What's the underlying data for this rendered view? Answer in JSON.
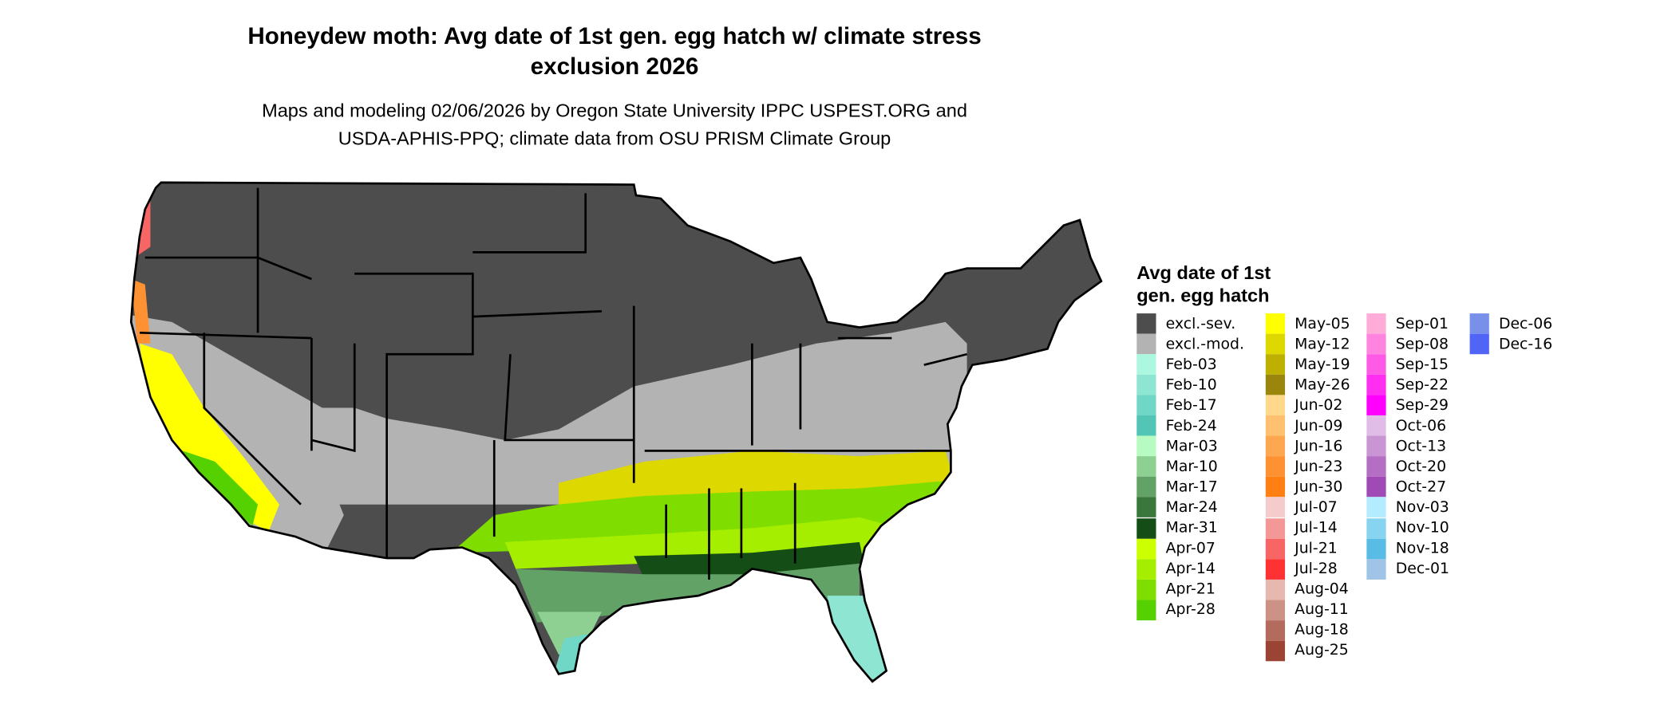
{
  "title": "Honeydew moth: Avg date of 1st gen. egg hatch w/ climate stress exclusion 2026",
  "title_lines": [
    "Honeydew moth: Avg date of 1st gen. egg hatch w/ climate stress",
    "exclusion 2026"
  ],
  "subtitle_lines": [
    "Maps and modeling 02/06/2026 by Oregon State University IPPC USPEST.ORG and",
    "USDA-APHIS-PPQ; climate data from OSU PRISM Climate Group"
  ],
  "legend": {
    "title_lines": [
      "Avg date of 1st",
      "gen. egg hatch"
    ],
    "items": [
      {
        "label": "excl.-sev.",
        "color": "#4d4d4d"
      },
      {
        "label": "excl.-mod.",
        "color": "#b3b3b3"
      },
      {
        "label": "Feb-03",
        "color": "#abf7e0"
      },
      {
        "label": "Feb-10",
        "color": "#8ee6d2"
      },
      {
        "label": "Feb-17",
        "color": "#70d6c6"
      },
      {
        "label": "Feb-24",
        "color": "#52c5b6"
      },
      {
        "label": "Mar-03",
        "color": "#b7fbc2"
      },
      {
        "label": "Mar-10",
        "color": "#8ecf92"
      },
      {
        "label": "Mar-17",
        "color": "#62a266"
      },
      {
        "label": "Mar-24",
        "color": "#3a773c"
      },
      {
        "label": "Mar-31",
        "color": "#154d17"
      },
      {
        "label": "Apr-07",
        "color": "#ccff00"
      },
      {
        "label": "Apr-14",
        "color": "#a6ee00"
      },
      {
        "label": "Apr-21",
        "color": "#7fdd00"
      },
      {
        "label": "Apr-28",
        "color": "#55d000"
      },
      {
        "label": "May-05",
        "color": "#ffff00"
      },
      {
        "label": "May-12",
        "color": "#ddd800"
      },
      {
        "label": "May-19",
        "color": "#bdb000"
      },
      {
        "label": "May-26",
        "color": "#9a860c"
      },
      {
        "label": "Jun-02",
        "color": "#ffd88c"
      },
      {
        "label": "Jun-09",
        "color": "#ffc070"
      },
      {
        "label": "Jun-16",
        "color": "#fda850"
      },
      {
        "label": "Jun-23",
        "color": "#fe9132"
      },
      {
        "label": "Jun-30",
        "color": "#ff7f13"
      },
      {
        "label": "Jul-07",
        "color": "#f4cccc"
      },
      {
        "label": "Jul-14",
        "color": "#f39896"
      },
      {
        "label": "Jul-21",
        "color": "#f76565"
      },
      {
        "label": "Jul-28",
        "color": "#fe3232"
      },
      {
        "label": "Aug-04",
        "color": "#e6b8af"
      },
      {
        "label": "Aug-11",
        "color": "#cc9285"
      },
      {
        "label": "Aug-18",
        "color": "#b36b5e"
      },
      {
        "label": "Aug-25",
        "color": "#9c4434"
      },
      {
        "label": "Sep-01",
        "color": "#ffacd8"
      },
      {
        "label": "Sep-08",
        "color": "#ff84e0"
      },
      {
        "label": "Sep-15",
        "color": "#ff5ae6"
      },
      {
        "label": "Sep-22",
        "color": "#ff2ef0"
      },
      {
        "label": "Sep-29",
        "color": "#ff00ff"
      },
      {
        "label": "Oct-06",
        "color": "#dfbde6"
      },
      {
        "label": "Oct-13",
        "color": "#c996d3"
      },
      {
        "label": "Oct-20",
        "color": "#b46fc4"
      },
      {
        "label": "Oct-27",
        "color": "#a04ab6"
      },
      {
        "label": "Nov-03",
        "color": "#b3ecfe"
      },
      {
        "label": "Nov-10",
        "color": "#86d4f0"
      },
      {
        "label": "Nov-18",
        "color": "#58bce4"
      },
      {
        "label": "Dec-01",
        "color": "#9fc4e8"
      },
      {
        "label": "Dec-06",
        "color": "#7890ea"
      },
      {
        "label": "Dec-16",
        "color": "#5065f5"
      }
    ]
  }
}
